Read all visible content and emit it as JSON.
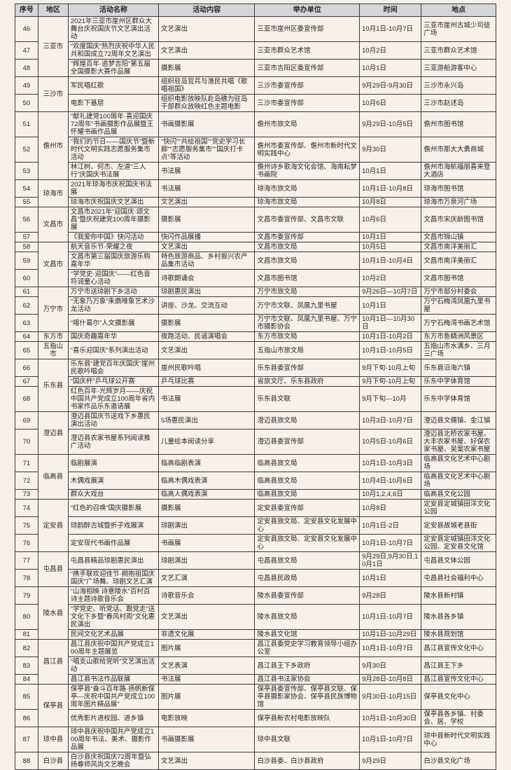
{
  "page": {
    "background": "#f8f0ea",
    "table_border": "#3c3c3c",
    "header_bg": "#d6d6d6",
    "text_color": "#262626"
  },
  "table": {
    "headers": [
      "序号",
      "地区",
      "活动名称",
      "活动内容",
      "举办单位",
      "时间",
      "地点"
    ],
    "regions": [
      {
        "label": "三亚市",
        "start": "46",
        "span": 3
      },
      {
        "label": "三沙市",
        "start": "49",
        "span": 2
      },
      {
        "label": "儋州市",
        "start": "51",
        "span": 3
      },
      {
        "label": "琼海市",
        "start": "54",
        "span": 2
      },
      {
        "label": "文昌市",
        "start": "56",
        "span": 2
      },
      {
        "label": "文昌市",
        "start": "58",
        "span": 3
      },
      {
        "label": "万宁市",
        "start": "61",
        "span": 3
      },
      {
        "label": "东方市",
        "start": "64",
        "span": 1
      },
      {
        "label": "五指山市",
        "start": "65",
        "span": 1
      },
      {
        "label": "乐东县",
        "start": "66",
        "span": 3
      },
      {
        "label": "澄迈县",
        "start": "69",
        "span": 2
      },
      {
        "label": "临高县",
        "start": "71",
        "span": 3
      },
      {
        "label": "定安县",
        "start": "74",
        "span": 3
      },
      {
        "label": "屯昌县",
        "start": "77",
        "span": 2
      },
      {
        "label": "陵水县",
        "start": "79",
        "span": 3
      },
      {
        "label": "昌江县",
        "start": "82",
        "span": 3
      },
      {
        "label": "保亭县",
        "start": "85",
        "span": 2
      },
      {
        "label": "琼中县",
        "start": "87",
        "span": 1
      },
      {
        "label": "白沙县",
        "start": "88",
        "span": 1
      }
    ],
    "rows": [
      {
        "no": "46",
        "name": "2021年三亚市崖州区群众大舞台庆祝国庆节文艺演出活动",
        "content": "文艺演出",
        "org": "三亚市崖州区委宣传部",
        "time": "10月1日-10月7日",
        "place": "三亚市崖州古城少司徒广场"
      },
      {
        "no": "47",
        "name": "“欢度国庆”热烈庆祝中华人民共和国成立72周年文艺演出",
        "content": "文艺演出",
        "org": "三亚市群众艺术馆",
        "time": "10月2日",
        "place": "三亚市群众艺术馆"
      },
      {
        "no": "48",
        "name": "“辉煌百年·追梦吉阳”第五届全国摄影大赛作品展",
        "content": "摄影展",
        "org": "三亚市吉阳区委宣传部",
        "time": "10月1日",
        "place": "三亚游船游客中心"
      },
      {
        "no": "49",
        "name": "军民唱红歌",
        "content": "组织驻岛官兵与渔民共唱《歌唱祖国》",
        "org": "三沙市委宣传部",
        "time": "9月29日-9月30日",
        "place": "三沙市永兴岛"
      },
      {
        "no": "50",
        "name": "电影下基层",
        "content": "组织电影放映队赴岛礁为驻岛干部群众放映红色主题电影",
        "org": "三沙市委宣传部",
        "time": "10月6日",
        "place": "三沙市赵述岛"
      },
      {
        "no": "51",
        "name": "“献礼建党100周年·喜迎国庆72周年”书画摄影作品展暨王怀耀书画作品展",
        "content": "书画摄影展",
        "org": "儋州市旅文局",
        "time": "9月29日-10月5日",
        "place": "儋州市图书馆"
      },
      {
        "no": "52",
        "name": "“我们的节日——国庆节”暨新时代文明实践志愿服务集市活动",
        "content": "“快闪”“共绘祖国”“党史学习长廊”“志愿服务集市”“国庆打卡点”等活动",
        "org": "儋州市委宣传部、儋州市新时代文明实践中心",
        "time": "9月30日",
        "place": "儋州市那大大勇商城"
      },
      {
        "no": "53",
        "name": "林江树、何杰、左道“三人行”庆国庆书法展",
        "content": "书法展",
        "org": "儋州诗乡歌海文化会馆、海南耘梦书画院",
        "time": "10月1日",
        "place": "儋州市海航福朋喜来登大酒店"
      },
      {
        "no": "54",
        "name": "2021年琼海市庆祝国庆书法展",
        "content": "书法展",
        "org": "琼海市旅文局",
        "time": "10月1日-10月8日",
        "place": "琼海市图书馆"
      },
      {
        "no": "55",
        "name": "琼海市庆祝国庆文艺演出",
        "content": "文艺演出",
        "org": "琼海市旅文局",
        "time": "10月8日",
        "place": "琼海市万泉河广场"
      },
      {
        "no": "56",
        "name": "文昌市2021年“迎国庆·颂文昌”暨庆祝建党100周年摄影展",
        "content": "摄影展",
        "org": "文昌市委宣传部、文昌市文联",
        "time": "10月6日",
        "place": "文昌市宋庆龄图书馆"
      },
      {
        "no": "57",
        "name": "《我爱你中国》快闪活动",
        "content": "快闪作品展播",
        "org": "文昌市委宣传部",
        "time": "10月1日",
        "place": "文昌市锦山镇"
      },
      {
        "no": "58",
        "name": "航天音乐节·荣耀之夜",
        "content": "文艺演出",
        "org": "文昌市旅文局",
        "time": "10月5日",
        "place": "文昌市南洋美丽汇"
      },
      {
        "no": "59",
        "name": "文昌市第三届国庆旅游乐购嘉年华",
        "content": "特色旅游商品、乡村振兴农产品集市活动",
        "org": "文昌市旅文局",
        "time": "10月1日-10月4日",
        "place": "文昌市南洋美丽汇"
      },
      {
        "no": "60",
        "name": "“学党史·迎国庆”——红色音符润童心活动",
        "content": "诗歌朗诵会",
        "org": "文昌市图书馆",
        "time": "10月2日",
        "place": "文昌市图书馆"
      },
      {
        "no": "61",
        "name": "万宁市送琼剧下乡活动",
        "content": "琼剧惠民演出",
        "org": "万宁市旅文局",
        "time": "9月26日—10月7日",
        "place": "万宁市部分村委会"
      },
      {
        "no": "62",
        "name": "“无象乃万象”朱鼎唯象艺术沙龙活动",
        "content": "讲座、沙龙、交流互动",
        "org": "万宁市文联、凤凰九里书屋",
        "time": "10月1日",
        "place": "万宁石梅湾凤凰九里书屋"
      },
      {
        "no": "63",
        "name": "“喀什葛尔”人文摄影展",
        "content": "摄影展",
        "org": "万宁市文联、凤凰九里书屋、万宁市摄影协会",
        "time": "10月1日—10月30日",
        "place": "万宁石梅湾书画艺术馆"
      },
      {
        "no": "64",
        "name": "国庆奇趣嘉年华",
        "content": "夜跑活动、民谣演唱会",
        "org": "东方市旅文局",
        "time": "10月1日-10月2日",
        "place": "东方市鱼鳞洲风景区"
      },
      {
        "no": "65",
        "name": "“喜乐迎国庆”系列演出活动",
        "content": "文艺演出",
        "org": "五指山市旅文局",
        "time": "10月1日-10月5日",
        "place": "五指山市水满乡、三月三广场"
      },
      {
        "no": "66",
        "name": "乐东县“建党百年庆国庆”崖州民歌吟唱会",
        "content": "崖州民歌吟唱",
        "org": "乐东县委宣传部",
        "time": "9月下旬-10月上旬",
        "place": "乐东县沿海六镇"
      },
      {
        "no": "67",
        "name": "“国庆杯”乒乓球公开赛",
        "content": "乒乓球比赛",
        "org": "省旅文厅、乐东县政府",
        "time": "9月下旬-10月上旬",
        "place": "乐东中学体育馆"
      },
      {
        "no": "68",
        "name": "红色百年·光辉岁月——庆祝中国共产党成立100周年省内书家作品乐东邀请展",
        "content": "书法展",
        "org": "乐东县文联",
        "time": "9月下旬—10月",
        "place": "乐东中学体育馆"
      },
      {
        "no": "69",
        "name": "澄迈县国庆节送戏下乡惠民演出活动",
        "content": "5场惠民演出",
        "org": "澄迈县旅文局",
        "time": "10月3日-10月7日",
        "place": "澄迈县文儒镇、金江镇"
      },
      {
        "no": "70",
        "name": "澄迈县农家书屋系列阅读推广活动",
        "content": "儿童绘本阅读分享",
        "org": "澄迈县委宣传部",
        "time": "10月5日-10月6日",
        "place": "澄迈县北桥农家书屋、大丰农家书屋、好保农家书屋、吴案农家书屋"
      },
      {
        "no": "71",
        "name": "临剧展演",
        "content": "临高临剧表演",
        "org": "临高县旅文局",
        "time": "10月1日-10月3日",
        "place": "临高县文化艺术中心剧场"
      },
      {
        "no": "72",
        "name": "木偶戏展演",
        "content": "临高木偶戏表演",
        "org": "临高县旅文局",
        "time": "10月4日-10月6日",
        "place": "临高县文化艺术中心剧场"
      },
      {
        "no": "73",
        "name": "群众大戏台",
        "content": "临高人偶戏表演",
        "org": "临高县旅文局",
        "time": "10月1,2,4,6日",
        "place": "临高县文化公园"
      },
      {
        "no": "74",
        "name": "“红色的召唤”国庆摄影展",
        "content": "摄影展",
        "org": "定安县委宣传部",
        "time": "10月8日",
        "place": "定安县定城镇田洋文化公园"
      },
      {
        "no": "75",
        "name": "琼韵醉古城暨折子戏展演",
        "content": "琼剧演出",
        "org": "定安县旅文局、定安县文化发展中心",
        "time": "10月1日-2日",
        "place": "定安县故城老县街"
      },
      {
        "no": "76",
        "name": "定安现代书画作品展",
        "content": "书画展",
        "org": "定安县旅文局、定安县文化发展中心",
        "time": "10月1日-10月7日",
        "place": "定安县定城镇田洋文化公园、定安县文化馆"
      },
      {
        "no": "77",
        "name": "屯昌县精品琼剧惠民演出",
        "content": "琼剧演出",
        "org": "屯昌县旅文局",
        "time": "9月29日,9月30日,10月1日",
        "place": "屯昌县文体公园"
      },
      {
        "no": "78",
        "name": "“携手联欢迎佳节·拥抱祖国庆国庆”广场舞、琼剧文艺汇演",
        "content": "文艺汇演",
        "org": "屯昌县民政局",
        "time": "10月1日",
        "place": "屯昌县社会福利中心"
      },
      {
        "no": "79",
        "name": "“山海相映 诗意陵水”百村百诗主题诗歌音乐会",
        "content": "诗歌音乐会",
        "org": "陵水县委宣传部",
        "time": "9月28日",
        "place": "陵水县新村镇"
      },
      {
        "no": "80",
        "name": "“学党史、听党话、跟党走”送文化下乡暨“春风村雨”文化惠民演出",
        "content": "文艺演出",
        "org": "陵水县旅文局",
        "time": "10月1日-10月7日",
        "place": "陵水县各乡镇"
      },
      {
        "no": "81",
        "name": "民间文化艺术品展",
        "content": "非遗文化展",
        "org": "陵水县文化馆",
        "time": "10月1日-10月29日",
        "place": "陵水县规划馆"
      },
      {
        "no": "82",
        "name": "昌江县庆祝中国共产党成立100周年主题展览",
        "content": "图片展",
        "org": "昌江县委党史学习教育领导小组办公室",
        "time": "10月1日-10月7日",
        "place": "昌江县宣传文化中心"
      },
      {
        "no": "83",
        "name": "“唱支山歌给党听”文艺演出活动",
        "content": "文艺表演",
        "org": "昌江县王下乡政府",
        "time": "9月30日",
        "place": "昌江县王下乡"
      },
      {
        "no": "84",
        "name": "昌江县书法作品联展",
        "content": "书法展",
        "org": "昌江县书法家协会",
        "time": "9月28日-10月8日",
        "place": "昌江县宣传文化中心"
      },
      {
        "no": "85",
        "name": "保亭县“奋斗百年路·扬帆新保亭—庆祝中国共产党成立100周年图片精品展”",
        "content": "图片展",
        "org": "保亭县委宣传部、保亭县文联、保亭县摄影家协会、保亭县民族博物馆",
        "time": "9月30日-10月15日",
        "place": "保亭县文化中心"
      },
      {
        "no": "86",
        "name": "优秀影片进校园、进乡镇",
        "content": "电影放映",
        "org": "保亭县新农村电影放映队",
        "time": "10月1日-10月30日",
        "place": "保亭县各乡镇、村委会、居、学校"
      },
      {
        "no": "87",
        "name": "琼中县庆祝中国共产党成立100周年书法、美术、摄影作品展",
        "content": "书画摄影展",
        "org": "琼中县文联",
        "time": "10月1日-10月7日",
        "place": "琼中县新时代文明实践中心"
      },
      {
        "no": "88",
        "name": "白沙县庆祝国庆72周年暨弘扬尊师风尚文艺晚会",
        "content": "文艺演出",
        "org": "白沙县委、白沙县政府",
        "time": "9月29日",
        "place": "白沙县文化广场"
      }
    ]
  }
}
